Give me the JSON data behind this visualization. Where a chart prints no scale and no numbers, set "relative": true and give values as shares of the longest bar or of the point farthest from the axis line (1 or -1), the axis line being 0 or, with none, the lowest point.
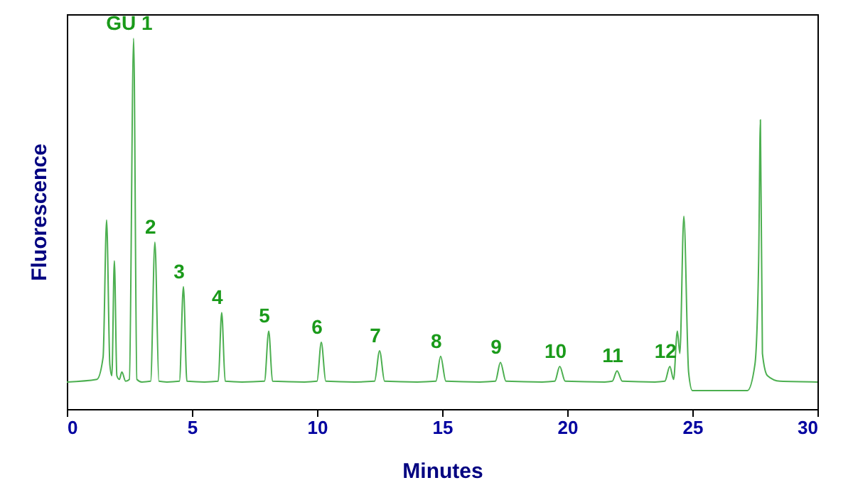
{
  "chart_data": {
    "type": "line",
    "relative": true,
    "xlabel": "Minutes",
    "ylabel": "Fluorescence",
    "xlim": [
      0,
      30
    ],
    "xticks": [
      0,
      5,
      10,
      15,
      20,
      25,
      30
    ],
    "tick_labels": "x",
    "grid": false,
    "series": [
      {
        "color": "#4caf50",
        "x": [
          0,
          1.2,
          1.45,
          1.59,
          1.72,
          1.8,
          1.9,
          2.0,
          2.1,
          2.2,
          2.35,
          2.5,
          2.67,
          2.8,
          3.0,
          3.35,
          3.52,
          3.68,
          4.0,
          4.5,
          4.66,
          4.8,
          5.5,
          6.05,
          6.19,
          6.33,
          7.0,
          7.9,
          8.07,
          8.22,
          9.5,
          10.0,
          10.17,
          10.35,
          11.5,
          12.3,
          12.5,
          12.7,
          14.0,
          14.75,
          14.94,
          15.15,
          16.5,
          17.13,
          17.33,
          17.55,
          19.0,
          19.5,
          19.7,
          19.92,
          21.5,
          21.8,
          21.99,
          22.2,
          23.5,
          23.9,
          24.1,
          24.25,
          24.4,
          24.5,
          24.66,
          24.85,
          25.0,
          27.2,
          27.5,
          27.65,
          27.72,
          27.8,
          28.0,
          28.5,
          30
        ],
        "values": [
          0.073,
          0.08,
          0.14,
          0.51,
          0.12,
          0.09,
          0.4,
          0.09,
          0.08,
          0.1,
          0.075,
          0.08,
          1.0,
          0.08,
          0.073,
          0.075,
          0.45,
          0.075,
          0.073,
          0.075,
          0.33,
          0.075,
          0.073,
          0.075,
          0.26,
          0.075,
          0.073,
          0.075,
          0.21,
          0.075,
          0.073,
          0.075,
          0.18,
          0.075,
          0.073,
          0.075,
          0.157,
          0.075,
          0.073,
          0.075,
          0.142,
          0.075,
          0.073,
          0.075,
          0.126,
          0.075,
          0.073,
          0.075,
          0.115,
          0.075,
          0.073,
          0.075,
          0.103,
          0.075,
          0.073,
          0.075,
          0.115,
          0.08,
          0.21,
          0.15,
          0.52,
          0.1,
          0.05,
          0.05,
          0.12,
          0.4,
          0.78,
          0.15,
          0.09,
          0.075,
          0.073
        ]
      }
    ],
    "annotations": [
      {
        "text": "GU 1",
        "x": 2.67,
        "y": 1.0
      },
      {
        "text": "2",
        "x": 3.52,
        "y": 0.45
      },
      {
        "text": "3",
        "x": 4.66,
        "y": 0.33
      },
      {
        "text": "4",
        "x": 6.19,
        "y": 0.26
      },
      {
        "text": "5",
        "x": 8.07,
        "y": 0.21
      },
      {
        "text": "6",
        "x": 10.17,
        "y": 0.18
      },
      {
        "text": "7",
        "x": 12.5,
        "y": 0.157
      },
      {
        "text": "8",
        "x": 14.94,
        "y": 0.142
      },
      {
        "text": "9",
        "x": 17.33,
        "y": 0.126
      },
      {
        "text": "10",
        "x": 19.7,
        "y": 0.115
      },
      {
        "text": "11",
        "x": 21.99,
        "y": 0.103
      },
      {
        "text": "12",
        "x": 24.1,
        "y": 0.115
      }
    ]
  }
}
